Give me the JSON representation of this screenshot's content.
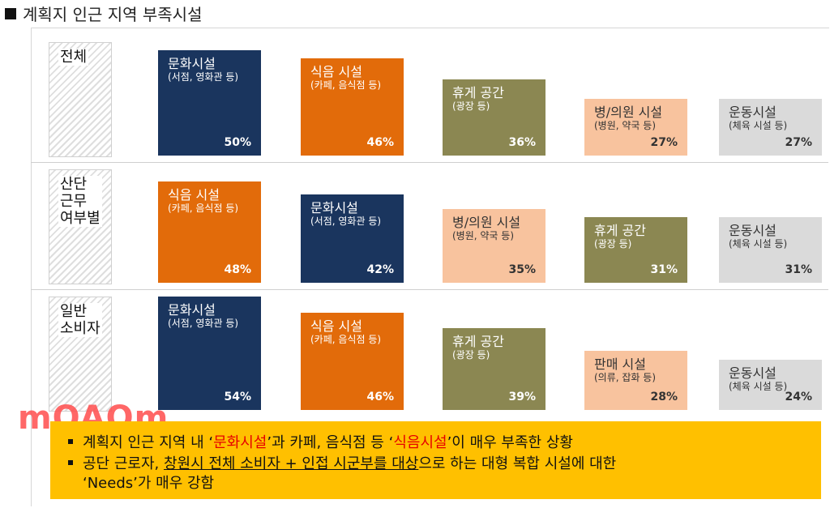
{
  "title": "계획지 인근 지역 부족시설",
  "rows": [
    {
      "label": "전체"
    },
    {
      "label": "산단\n근무\n여부별"
    },
    {
      "label": "일반\n소비자"
    }
  ],
  "watermark": "mOAOm",
  "callout": {
    "line1_a": "계획지 인근 지역 내 ‘",
    "line1_red1": "문화시설",
    "line1_b": "’과 카페, 음식점 등 ‘",
    "line1_red2": "식음시설",
    "line1_c": "’이 매우 부족한 상황",
    "line2_a": "공단 근로자, ",
    "line2_u": "창원시 전체 소비자 + 인접 시군부를 대상",
    "line2_b": "으로 하는 대형 복합 시설에 대한",
    "line3": "‘Needs’가 매우 강함"
  },
  "colors": {
    "navy": "#1a355e",
    "orange": "#e26b0a",
    "olive": "#8b8752",
    "peach": "#f8c39e",
    "gray": "#dadada",
    "callout_bg": "#ffc000"
  },
  "chart_data": [
    {
      "type": "bar",
      "group": "전체",
      "categories": [
        "문화시설",
        "식음 시설",
        "휴게 공간",
        "병/의원 시설",
        "운동시설"
      ],
      "subtitles": [
        "(서점, 영화관 등)",
        "(카페, 음식점 등)",
        "(광장 등)",
        "(병원, 약국 등)",
        "(체육 시설 등)"
      ],
      "values": [
        50,
        46,
        36,
        27,
        27
      ],
      "labels": [
        "50%",
        "46%",
        "36%",
        "27%",
        "27%"
      ],
      "colors": [
        "navy",
        "orange",
        "olive",
        "peach",
        "gray"
      ],
      "unit": "%"
    },
    {
      "type": "bar",
      "group": "산단 근무 여부별",
      "categories": [
        "식음 시설",
        "문화시설",
        "병/의원 시설",
        "휴게 공간",
        "운동시설"
      ],
      "subtitles": [
        "(카페, 음식점 등)",
        "(서점, 영화관 등)",
        "(병원, 약국 등)",
        "(광장 등)",
        "(체육 시설 등)"
      ],
      "values": [
        48,
        42,
        35,
        31,
        31
      ],
      "labels": [
        "48%",
        "42%",
        "35%",
        "31%",
        "31%"
      ],
      "colors": [
        "orange",
        "navy",
        "peach",
        "olive",
        "gray"
      ],
      "unit": "%"
    },
    {
      "type": "bar",
      "group": "일반 소비자",
      "categories": [
        "문화시설",
        "식음 시설",
        "휴게 공간",
        "판매 시설",
        "운동시설"
      ],
      "subtitles": [
        "(서점, 영화관 등)",
        "(카페, 음식점 등)",
        "(광장 등)",
        "(의류, 잡화 등)",
        "(체육 시설 등)"
      ],
      "values": [
        54,
        46,
        39,
        28,
        24
      ],
      "labels": [
        "54%",
        "46%",
        "39%",
        "28%",
        "24%"
      ],
      "colors": [
        "navy",
        "orange",
        "olive",
        "peach",
        "gray"
      ],
      "unit": "%"
    }
  ]
}
